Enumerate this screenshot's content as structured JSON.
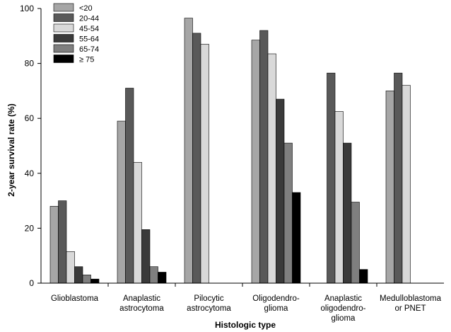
{
  "chart_data": {
    "type": "bar",
    "title": "",
    "xlabel": "Histologic type",
    "ylabel": "2-year survival rate (%)",
    "ylim": [
      0,
      100
    ],
    "yticks": [
      "0",
      "20",
      "40",
      "60",
      "80",
      "100"
    ],
    "grid": false,
    "legend_position": "top-left",
    "categories": [
      [
        "Glioblastoma"
      ],
      [
        "Anaplastic",
        "astrocytoma"
      ],
      [
        "Pilocytic",
        "astrocytoma"
      ],
      [
        "Oligodendro-",
        "glioma"
      ],
      [
        "Anaplastic",
        "oligodendro-",
        "glioma"
      ],
      [
        "Medulloblastoma",
        "or PNET"
      ]
    ],
    "series": [
      {
        "name": "<20",
        "color": "#a6a6a6",
        "values": [
          28,
          59,
          96.5,
          88.5,
          null,
          70
        ]
      },
      {
        "name": "20-44",
        "color": "#595959",
        "values": [
          30,
          71,
          91,
          92,
          76.5,
          76.5
        ]
      },
      {
        "name": "45-54",
        "color": "#d9d9d9",
        "values": [
          11.5,
          44,
          87,
          83.5,
          62.5,
          72
        ]
      },
      {
        "name": "55-64",
        "color": "#3a3a3a",
        "values": [
          6,
          19.5,
          null,
          67,
          51,
          null
        ]
      },
      {
        "name": "65-74",
        "color": "#7f7f7f",
        "values": [
          3,
          6,
          null,
          51,
          29.5,
          null
        ]
      },
      {
        "name": "≥ 75",
        "color": "#000000",
        "values": [
          1.5,
          4,
          null,
          33,
          5,
          null
        ]
      }
    ]
  }
}
